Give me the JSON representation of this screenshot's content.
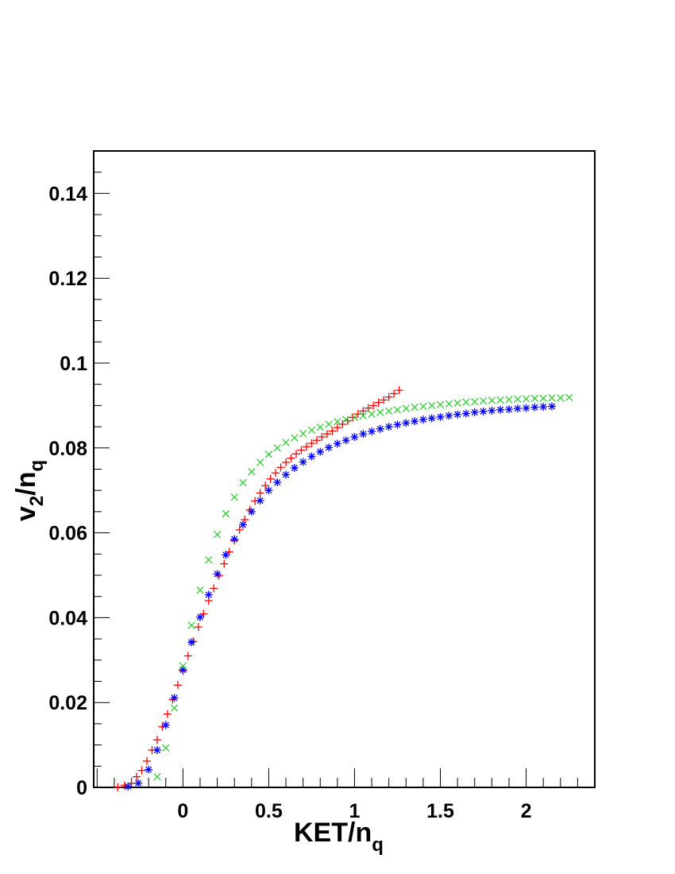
{
  "chart_data": {
    "type": "scatter",
    "title": "",
    "xlabel": {
      "main": "KET/n",
      "sub": "q"
    },
    "ylabel": {
      "main": "v",
      "sub1": "2",
      "mid": "/n",
      "sub2": "q"
    },
    "xlim": [
      -0.52,
      2.4
    ],
    "ylim": [
      0,
      0.15
    ],
    "x_ticks": [
      0,
      0.5,
      1,
      1.5,
      2
    ],
    "x_tick_labels": [
      "0",
      "0.5",
      "1",
      "1.5",
      "2"
    ],
    "y_ticks": [
      0,
      0.02,
      0.04,
      0.06,
      0.08,
      0.1,
      0.12,
      0.14
    ],
    "y_tick_labels": [
      "0",
      "0.02",
      "0.04",
      "0.06",
      "0.08",
      "0.1",
      "0.12",
      "0.14"
    ],
    "grid": false,
    "legend": "none",
    "series": [
      {
        "marker": "plus",
        "color": "#ff0000",
        "x": [
          -0.38,
          -0.34,
          -0.3,
          -0.27,
          -0.24,
          -0.21,
          -0.18,
          -0.15,
          -0.12,
          -0.09,
          -0.06,
          -0.03,
          0.0,
          0.03,
          0.06,
          0.09,
          0.12,
          0.15,
          0.18,
          0.21,
          0.24,
          0.27,
          0.3,
          0.33,
          0.36,
          0.39,
          0.42,
          0.45,
          0.48,
          0.51,
          0.54,
          0.57,
          0.6,
          0.63,
          0.66,
          0.69,
          0.72,
          0.75,
          0.78,
          0.81,
          0.84,
          0.87,
          0.9,
          0.93,
          0.96,
          0.99,
          1.02,
          1.05,
          1.08,
          1.11,
          1.14,
          1.17,
          1.2,
          1.23,
          1.26
        ],
        "y": [
          0.0,
          0.0005,
          0.001,
          0.0025,
          0.004,
          0.0062,
          0.0088,
          0.0112,
          0.0143,
          0.0173,
          0.0207,
          0.0241,
          0.0275,
          0.031,
          0.0344,
          0.0378,
          0.0409,
          0.044,
          0.0469,
          0.0499,
          0.0527,
          0.0555,
          0.0582,
          0.0607,
          0.0631,
          0.0654,
          0.0675,
          0.0694,
          0.0711,
          0.0727,
          0.0741,
          0.0754,
          0.0766,
          0.0776,
          0.0786,
          0.0795,
          0.0803,
          0.0811,
          0.0818,
          0.0826,
          0.0833,
          0.084,
          0.0848,
          0.0856,
          0.0864,
          0.0872,
          0.088,
          0.0887,
          0.0894,
          0.09,
          0.0907,
          0.0913,
          0.092,
          0.0928,
          0.0936
        ]
      },
      {
        "marker": "star",
        "color": "#0000ff",
        "x": [
          -0.32,
          -0.26,
          -0.2,
          -0.15,
          -0.1,
          -0.05,
          0.0,
          0.05,
          0.1,
          0.15,
          0.2,
          0.25,
          0.3,
          0.35,
          0.4,
          0.45,
          0.5,
          0.55,
          0.6,
          0.65,
          0.7,
          0.75,
          0.8,
          0.85,
          0.9,
          0.95,
          1.0,
          1.05,
          1.1,
          1.15,
          1.2,
          1.25,
          1.3,
          1.35,
          1.4,
          1.45,
          1.5,
          1.55,
          1.6,
          1.65,
          1.7,
          1.75,
          1.8,
          1.85,
          1.9,
          1.95,
          2.0,
          2.05,
          2.1,
          2.15
        ],
        "y": [
          0.0002,
          0.001,
          0.0042,
          0.0088,
          0.0147,
          0.0211,
          0.0277,
          0.0342,
          0.0401,
          0.0454,
          0.0503,
          0.0548,
          0.0585,
          0.0619,
          0.065,
          0.0676,
          0.07,
          0.0719,
          0.0737,
          0.0753,
          0.0767,
          0.078,
          0.0791,
          0.0801,
          0.081,
          0.0818,
          0.0826,
          0.0833,
          0.0839,
          0.0845,
          0.085,
          0.0855,
          0.0859,
          0.0863,
          0.0867,
          0.087,
          0.0873,
          0.0876,
          0.0879,
          0.0881,
          0.0884,
          0.0886,
          0.0888,
          0.089,
          0.0891,
          0.0893,
          0.0894,
          0.0896,
          0.0897,
          0.0898
        ]
      },
      {
        "marker": "cross",
        "color": "#33cc33",
        "x": [
          -0.15,
          -0.1,
          -0.05,
          0.0,
          0.05,
          0.1,
          0.15,
          0.2,
          0.25,
          0.3,
          0.35,
          0.4,
          0.45,
          0.5,
          0.55,
          0.6,
          0.65,
          0.7,
          0.75,
          0.8,
          0.85,
          0.9,
          0.95,
          1.0,
          1.05,
          1.1,
          1.15,
          1.2,
          1.25,
          1.3,
          1.35,
          1.4,
          1.45,
          1.5,
          1.55,
          1.6,
          1.65,
          1.7,
          1.75,
          1.8,
          1.85,
          1.9,
          1.95,
          2.0,
          2.05,
          2.1,
          2.15,
          2.2,
          2.25
        ],
        "y": [
          0.0025,
          0.0093,
          0.0187,
          0.0286,
          0.0382,
          0.0465,
          0.0536,
          0.0596,
          0.0645,
          0.0684,
          0.0718,
          0.0744,
          0.0766,
          0.0785,
          0.08,
          0.0813,
          0.0824,
          0.0834,
          0.0842,
          0.0849,
          0.0856,
          0.0862,
          0.0867,
          0.0872,
          0.0876,
          0.088,
          0.0884,
          0.0887,
          0.089,
          0.0893,
          0.0896,
          0.0898,
          0.09,
          0.0902,
          0.0904,
          0.0906,
          0.0908,
          0.0909,
          0.0911,
          0.0912,
          0.0913,
          0.0914,
          0.0915,
          0.0916,
          0.0917,
          0.0917,
          0.0918,
          0.0918,
          0.0919
        ]
      }
    ]
  }
}
